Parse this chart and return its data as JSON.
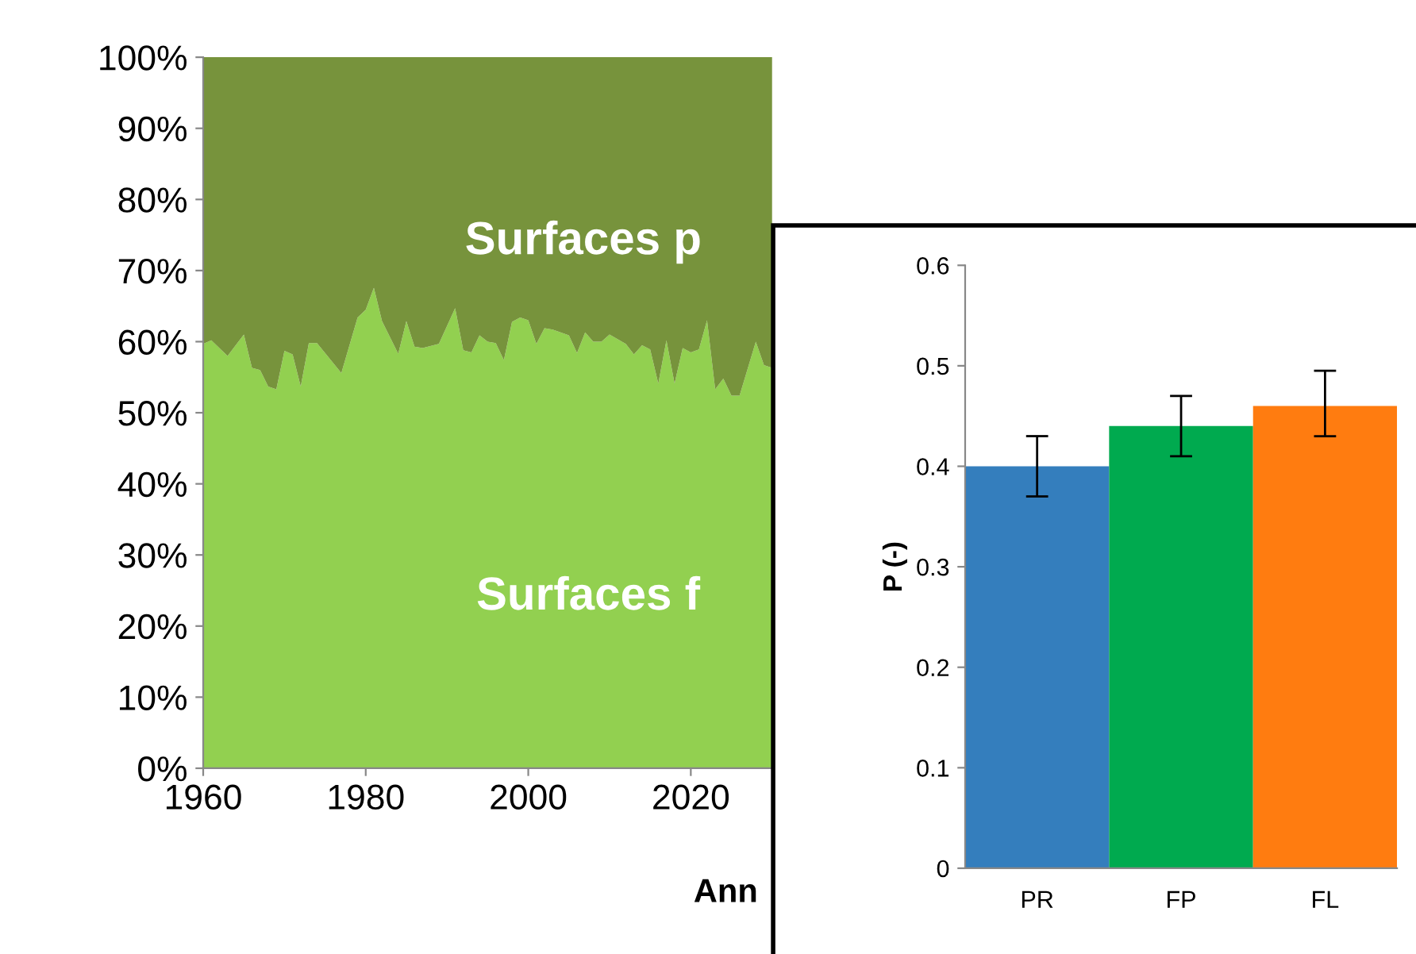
{
  "chart_data": [
    {
      "type": "area",
      "stacked": true,
      "xlabel": "Ann",
      "annotations": [
        "Surfaces p",
        "Surfaces f"
      ],
      "x": [
        1960,
        1961,
        1963,
        1965,
        1966,
        1967,
        1968,
        1969,
        1970,
        1971,
        1972,
        1973,
        1974,
        1977,
        1979,
        1980,
        1981,
        1982,
        1984,
        1985,
        1986,
        1987,
        1989,
        1991,
        1992,
        1993,
        1994,
        1995,
        1996,
        1997,
        1998,
        1999,
        2000,
        2001,
        2002,
        2003,
        2005,
        2006,
        2007,
        2008,
        2009,
        2010,
        2012,
        2013,
        2014,
        2015,
        2016,
        2017,
        2018,
        2019,
        2020,
        2021,
        2022,
        2023,
        2024,
        2025,
        2026,
        2028,
        2029,
        2030
      ],
      "series": [
        {
          "color": "#92d050",
          "values": [
            59.7,
            60.2,
            58.0,
            61.0,
            56.3,
            56.0,
            53.7,
            53.3,
            58.7,
            58.2,
            53.7,
            59.8,
            59.8,
            55.6,
            63.4,
            64.5,
            67.6,
            62.9,
            58.3,
            62.9,
            59.3,
            59.1,
            59.7,
            64.7,
            58.8,
            58.5,
            60.9,
            60.0,
            59.8,
            57.4,
            62.8,
            63.4,
            63.0,
            59.7,
            61.9,
            61.7,
            60.9,
            58.4,
            61.3,
            60.0,
            60.0,
            61.0,
            59.7,
            58.2,
            59.5,
            58.9,
            54.1,
            60.2,
            54.1,
            59.1,
            58.5,
            58.9,
            63.0,
            53.3,
            54.8,
            52.4,
            52.4,
            60.0,
            56.7,
            56.3
          ]
        },
        {
          "color": "#77933c",
          "values": [
            40.3,
            39.8,
            42.0,
            39.0,
            43.7,
            44.0,
            46.3,
            46.7,
            41.3,
            41.8,
            46.3,
            40.2,
            40.2,
            44.4,
            36.6,
            35.5,
            32.4,
            37.1,
            41.7,
            37.1,
            40.7,
            40.9,
            40.3,
            35.3,
            41.2,
            41.5,
            39.1,
            40.0,
            40.2,
            42.6,
            37.2,
            36.6,
            37.0,
            40.3,
            38.1,
            38.3,
            39.1,
            41.6,
            38.7,
            40.0,
            40.0,
            39.0,
            40.3,
            41.8,
            40.5,
            41.1,
            45.9,
            39.8,
            45.9,
            40.9,
            41.5,
            41.1,
            37.0,
            46.7,
            45.2,
            47.6,
            47.6,
            40.0,
            43.3,
            43.7
          ]
        }
      ],
      "xlim": [
        1960,
        2100
      ],
      "xticks": [
        1960,
        1980,
        2000,
        2020
      ],
      "ylim": [
        0,
        100
      ],
      "yticks": [
        {
          "value": 0,
          "label": "0%"
        },
        {
          "value": 10,
          "label": "10%"
        },
        {
          "value": 20,
          "label": "20%"
        },
        {
          "value": 30,
          "label": "30%"
        },
        {
          "value": 40,
          "label": "40%"
        },
        {
          "value": 50,
          "label": "50%"
        },
        {
          "value": 60,
          "label": "60%"
        },
        {
          "value": 70,
          "label": "70%"
        },
        {
          "value": 80,
          "label": "80%"
        },
        {
          "value": 90,
          "label": "90%"
        },
        {
          "value": 100,
          "label": "100%"
        }
      ]
    },
    {
      "type": "bar",
      "ylabel": "P (-)",
      "categories": [
        "PR",
        "FP",
        "FL"
      ],
      "values": [
        0.4,
        0.44,
        0.46
      ],
      "colors": [
        "#347ebd",
        "#00aa4f",
        "#ff7c10"
      ],
      "errors": [
        [
          0.37,
          0.43
        ],
        [
          0.41,
          0.47
        ],
        [
          0.43,
          0.495
        ]
      ],
      "ylim": [
        0,
        0.6
      ],
      "yticks": [
        0,
        0.1,
        0.2,
        0.3,
        0.4,
        0.5,
        0.6
      ]
    }
  ]
}
